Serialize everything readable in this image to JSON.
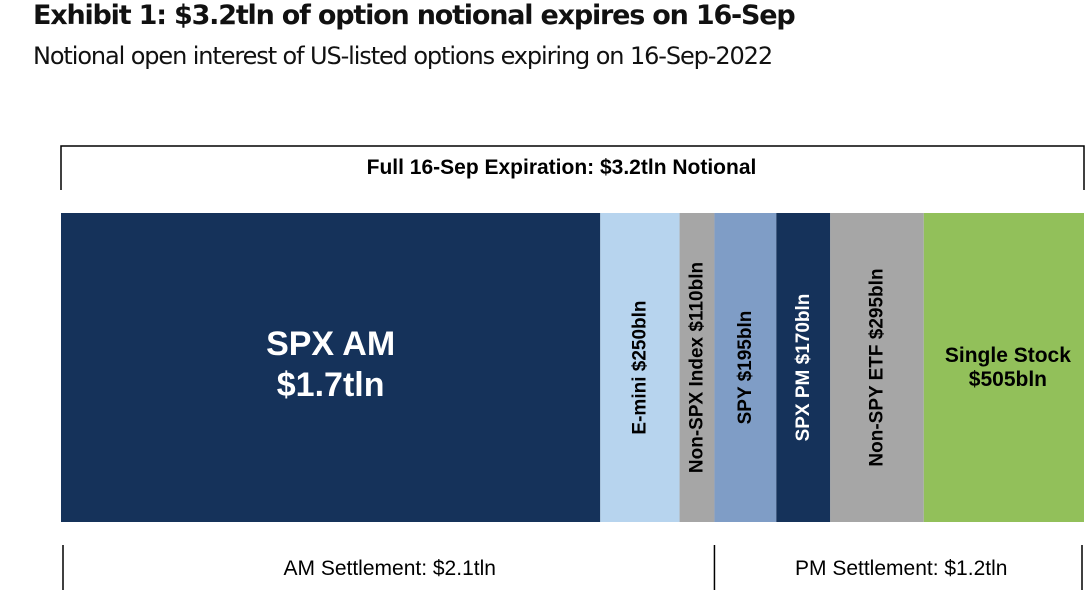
{
  "header": {
    "title": "Exhibit 1: $3.2tln of option notional expires on 16-Sep",
    "subtitle": "Notional open interest of US-listed options expiring on 16-Sep-2022"
  },
  "chart_data": {
    "type": "bar",
    "orientation": "horizontal-stacked",
    "top_bracket_label": "Full 16-Sep Expiration: $3.2tln Notional",
    "segments": [
      {
        "label_lines": [
          "SPX AM",
          "$1.7tln"
        ],
        "value": 1700,
        "color": "#15325a",
        "text_color": "#ffffff",
        "text_orientation": "horizontal"
      },
      {
        "label_lines": [
          "E-mini $250bln"
        ],
        "value": 250,
        "color": "#b7d4ee",
        "text_color": "#000000",
        "text_orientation": "vertical"
      },
      {
        "label_lines": [
          "Non-SPX Index $110bln"
        ],
        "value": 110,
        "color": "#a6a6a6",
        "text_color": "#000000",
        "text_orientation": "vertical"
      },
      {
        "label_lines": [
          "SPY $195bln"
        ],
        "value": 195,
        "color": "#7f9dc6",
        "text_color": "#000000",
        "text_orientation": "vertical"
      },
      {
        "label_lines": [
          "SPX PM $170bln"
        ],
        "value": 170,
        "color": "#15325a",
        "text_color": "#ffffff",
        "text_orientation": "vertical"
      },
      {
        "label_lines": [
          "Non-SPY ETF $295bln"
        ],
        "value": 295,
        "color": "#a6a6a6",
        "text_color": "#000000",
        "text_orientation": "vertical"
      },
      {
        "label_lines": [
          "Single Stock",
          "$505bln"
        ],
        "value": 505,
        "color": "#92c05a",
        "text_color": "#000000",
        "text_orientation": "horizontal"
      }
    ],
    "bottom_brackets": [
      {
        "label": "AM Settlement: $2.1tln",
        "segment_start": 0,
        "segment_end": 2
      },
      {
        "label": "PM Settlement: $1.2tln",
        "segment_start": 3,
        "segment_end": 6
      }
    ]
  }
}
